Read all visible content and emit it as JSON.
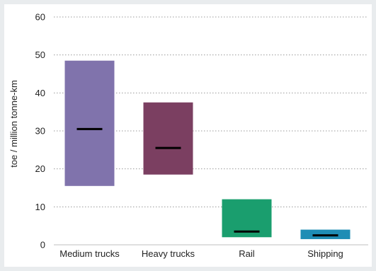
{
  "chart_data": {
    "type": "bar",
    "subtype": "floating-range-with-marker",
    "title": "",
    "xlabel": "",
    "ylabel": "toe / million tonne-km",
    "ylim": [
      0,
      60
    ],
    "yticks": [
      "0",
      "10",
      "20",
      "30",
      "40",
      "50",
      "60"
    ],
    "grid": "horizontal-dotted",
    "categories": [
      "Medium trucks",
      "Heavy trucks",
      "Rail",
      "Shipping"
    ],
    "ranges": [
      {
        "category": "Medium trucks",
        "low": 15.5,
        "high": 48.5,
        "marker": 30.5,
        "color": "#8073ac"
      },
      {
        "category": "Heavy trucks",
        "low": 18.5,
        "high": 37.5,
        "marker": 25.5,
        "color": "#7b3f61"
      },
      {
        "category": "Rail",
        "low": 2.0,
        "high": 12.0,
        "marker": 3.5,
        "color": "#1a9e6e"
      },
      {
        "category": "Shipping",
        "low": 1.5,
        "high": 4.0,
        "marker": 2.5,
        "color": "#1e8db5"
      }
    ],
    "marker_color": "#000000"
  }
}
